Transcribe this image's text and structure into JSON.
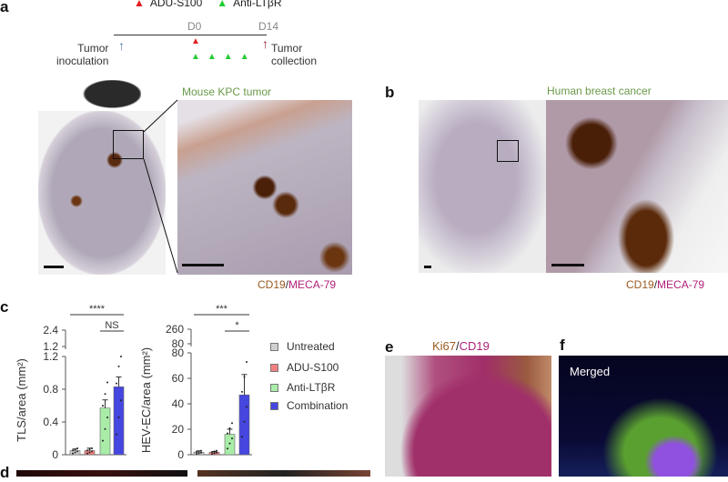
{
  "panels": {
    "a": "a",
    "b": "b",
    "c": "c",
    "d": "d",
    "e": "e",
    "f": "f"
  },
  "timeline": {
    "legend": [
      {
        "label": "ADU-S100",
        "color": "#e02020"
      },
      {
        "label": "Anti-LTβR",
        "color": "#22cc33"
      }
    ],
    "d0": "D0",
    "d14": "D14",
    "start": "Tumor\ninoculation",
    "end": "Tumor\ncollection"
  },
  "panel_a": {
    "title": "Mouse KPC tumor",
    "stain1": "CD19",
    "stain2": "MECA-79"
  },
  "panel_b": {
    "title": "Human breast cancer",
    "stain1": "CD19",
    "stain2": "MECA-79"
  },
  "panel_e": {
    "stain1": "Ki67",
    "stain2": "CD19"
  },
  "panel_f": {
    "label": "Merged"
  },
  "legend": [
    {
      "label": "Untreated",
      "color": "#d0d0d0"
    },
    {
      "label": "ADU-S100",
      "color": "#f08080"
    },
    {
      "label": "Anti-LTβR",
      "color": "#a8eca8"
    },
    {
      "label": "Combination",
      "color": "#4646e0"
    }
  ],
  "chart_data": [
    {
      "type": "bar",
      "ylabel": "TLS/area (mm²)",
      "categories": [
        "Untreated",
        "ADU-S100",
        "Anti-LTβR",
        "Combination"
      ],
      "values": [
        0.05,
        0.05,
        0.57,
        0.83
      ],
      "error": [
        0.02,
        0.03,
        0.1,
        0.12
      ],
      "yticks": [
        "0",
        "0.4",
        "0.8",
        "1.2"
      ],
      "break_ticks": [
        "1.2",
        "2.4"
      ],
      "ylim": [
        0,
        2.4
      ],
      "broken_axis": true,
      "significance": [
        {
          "label": "****",
          "from": "Untreated",
          "to": "Combination"
        },
        {
          "label": "NS",
          "from": "Anti-LTβR",
          "to": "Combination"
        }
      ]
    },
    {
      "type": "bar",
      "ylabel": "HEV-EC/area (mm²)",
      "categories": [
        "Untreated",
        "ADU-S100",
        "Anti-LTβR",
        "Combination"
      ],
      "values": [
        2,
        2,
        16,
        47
      ],
      "error": [
        1,
        0.5,
        4,
        16
      ],
      "yticks": [
        "0",
        "20",
        "40",
        "60",
        "80"
      ],
      "break_ticks": [
        "80",
        "260"
      ],
      "ylim": [
        0,
        260
      ],
      "broken_axis": true,
      "significance": [
        {
          "label": "***",
          "from": "Untreated",
          "to": "Combination"
        },
        {
          "label": "*",
          "from": "Anti-LTβR",
          "to": "Combination"
        }
      ]
    }
  ]
}
